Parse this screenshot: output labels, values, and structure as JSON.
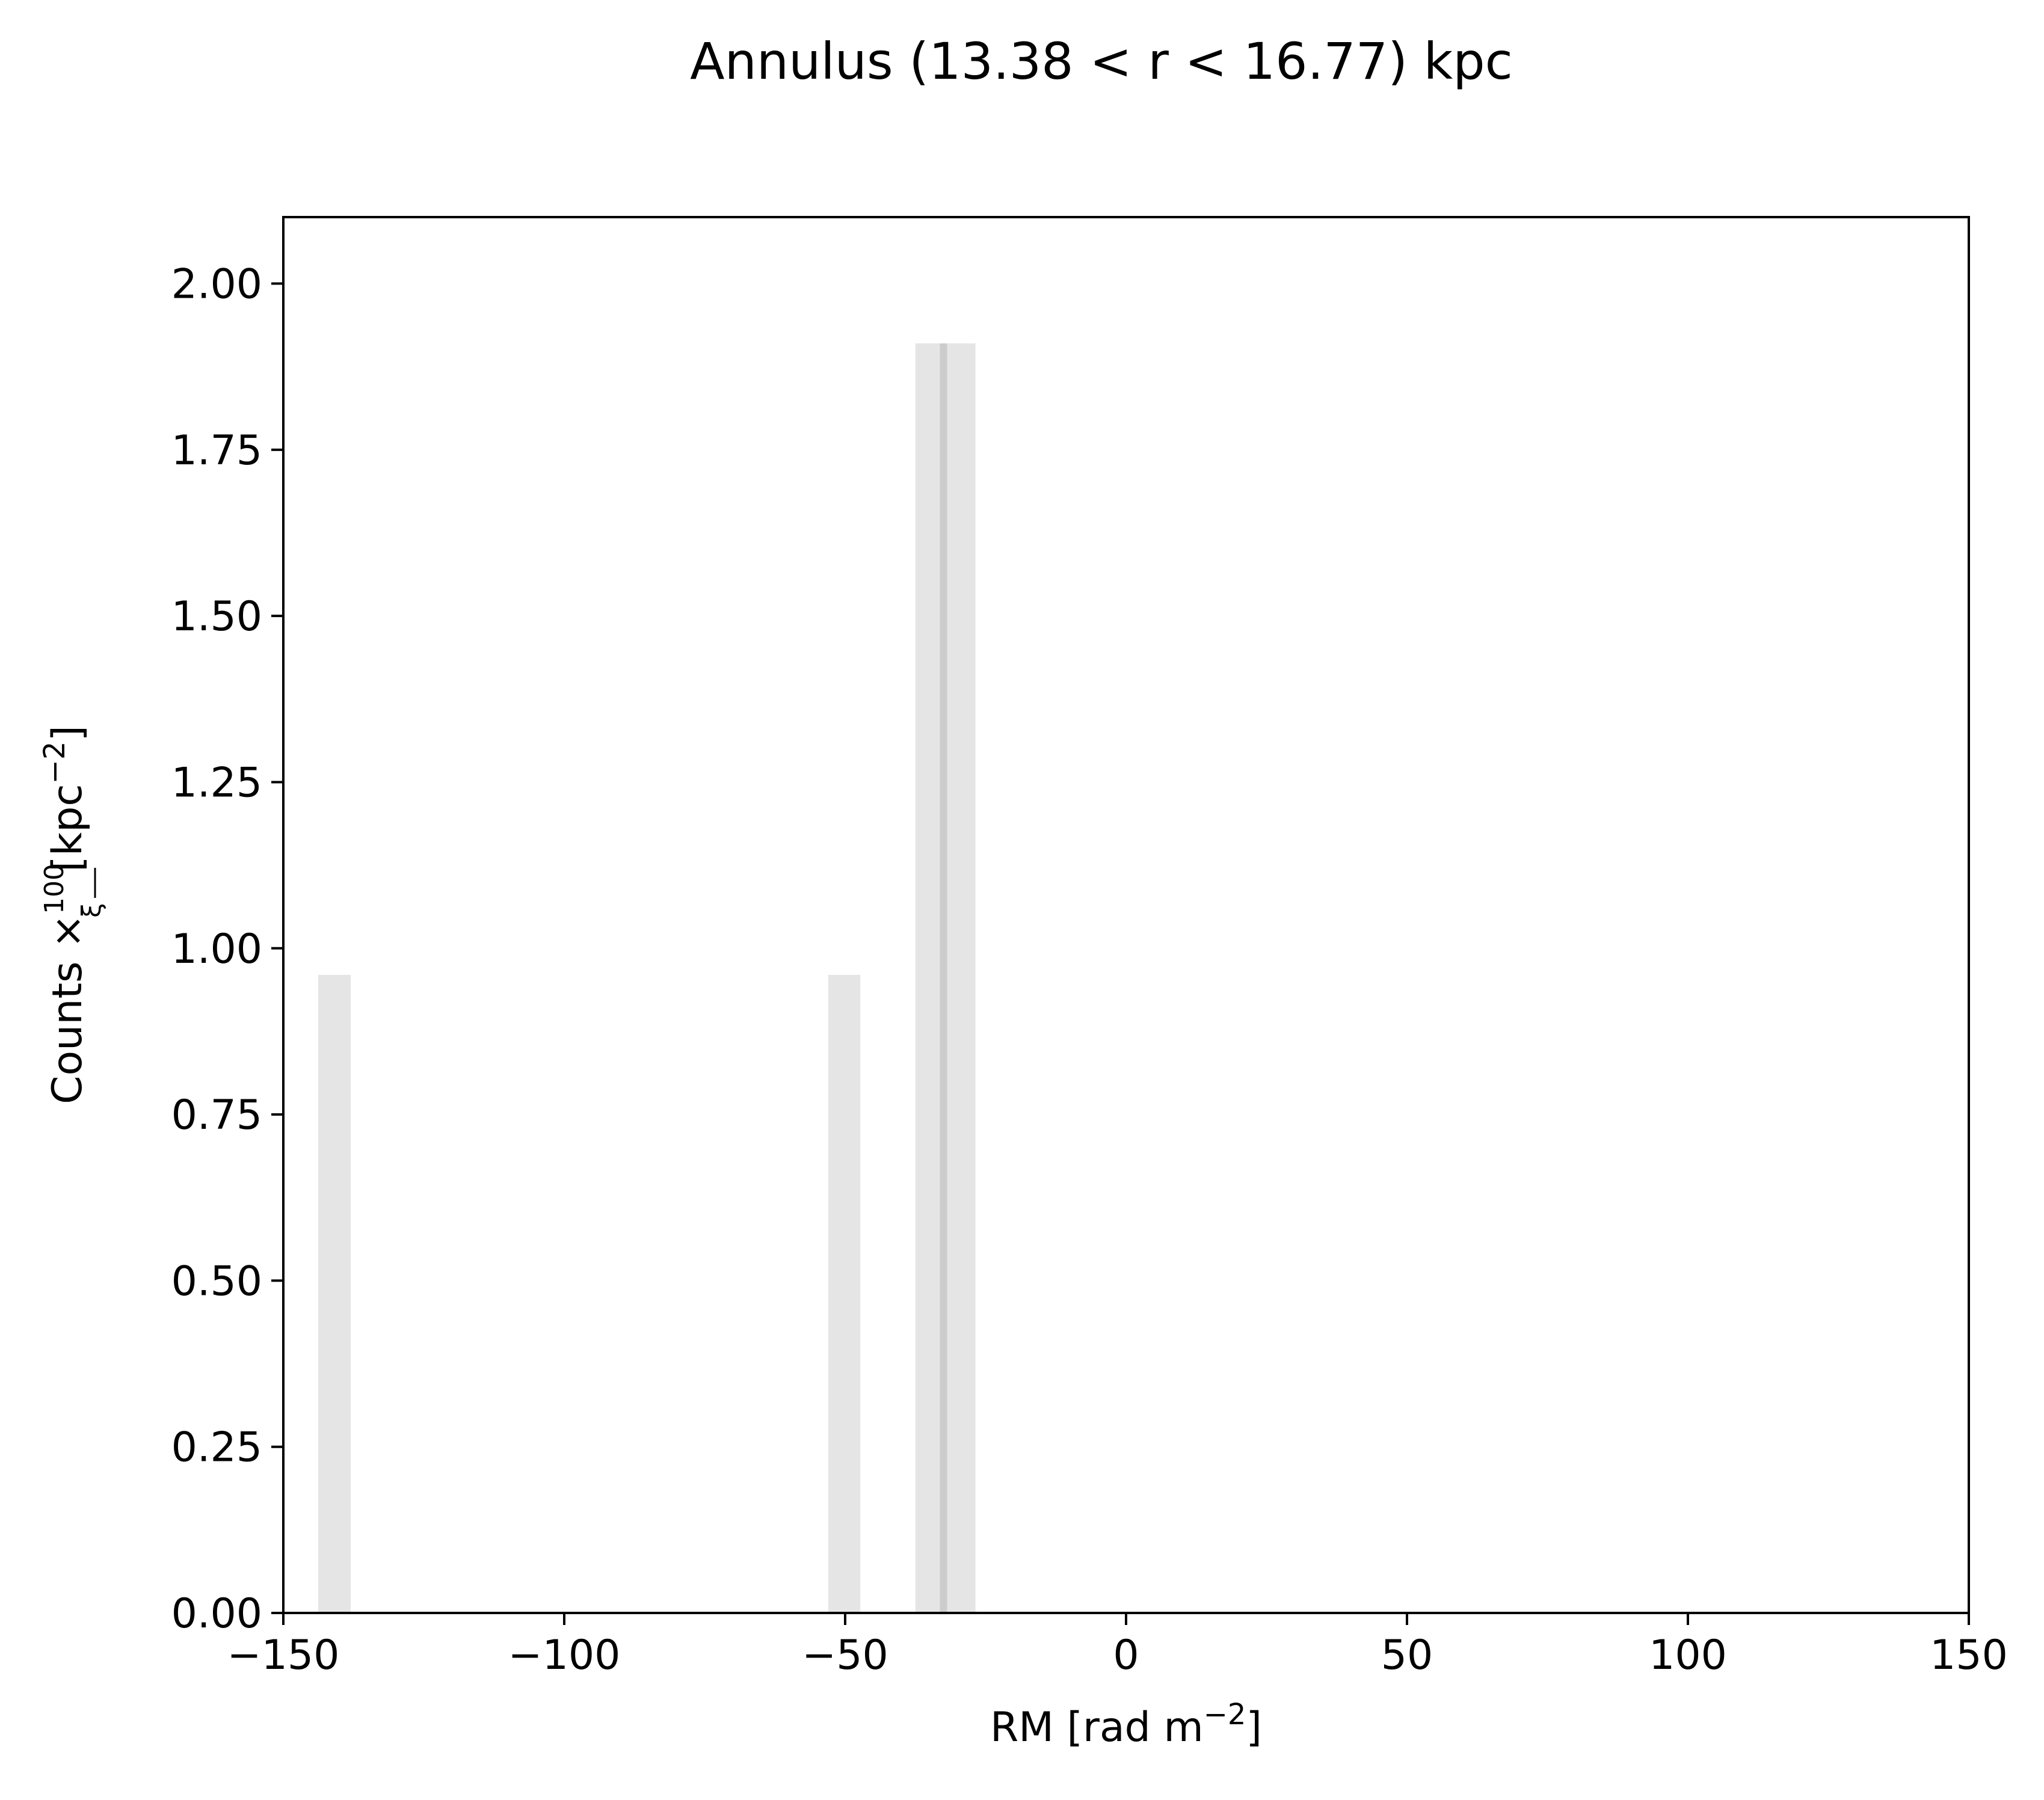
{
  "chart_data": {
    "type": "bar",
    "title": "Annulus (13.38 < r < 16.77) kpc",
    "xlabel": {
      "prefix": "RM [rad m",
      "sup": "−2",
      "suffix": "]"
    },
    "ylabel": {
      "prefix": "Counts ×",
      "frac_num": "100",
      "frac_den": "ξ",
      "mid": " [kpc",
      "sup": "−2",
      "suffix": "]"
    },
    "xlim": [
      -150,
      150
    ],
    "ylim": [
      0,
      2.1
    ],
    "xticks": [
      {
        "value": -150,
        "label": "−150"
      },
      {
        "value": -100,
        "label": "−100"
      },
      {
        "value": -50,
        "label": "−50"
      },
      {
        "value": 0,
        "label": "0"
      },
      {
        "value": 50,
        "label": "50"
      },
      {
        "value": 100,
        "label": "100"
      },
      {
        "value": 150,
        "label": "150"
      }
    ],
    "yticks": [
      {
        "value": 0.0,
        "label": "0.00"
      },
      {
        "value": 0.25,
        "label": "0.25"
      },
      {
        "value": 0.5,
        "label": "0.50"
      },
      {
        "value": 0.75,
        "label": "0.75"
      },
      {
        "value": 1.0,
        "label": "1.00"
      },
      {
        "value": 1.25,
        "label": "1.25"
      },
      {
        "value": 1.5,
        "label": "1.50"
      },
      {
        "value": 1.75,
        "label": "1.75"
      },
      {
        "value": 2.0,
        "label": "2.00"
      }
    ],
    "bars": [
      {
        "x0": -143.8,
        "x1": -138.0,
        "value": 0.96
      },
      {
        "x0": -53.0,
        "x1": -47.3,
        "value": 0.96
      },
      {
        "x0": -37.5,
        "x1": -26.8,
        "value": 1.91
      }
    ],
    "vline": {
      "x": -32.5
    },
    "grid": false,
    "colors": {
      "bar": "#e5e5e5",
      "vline": "#cccccc",
      "axes": "#000000"
    }
  }
}
